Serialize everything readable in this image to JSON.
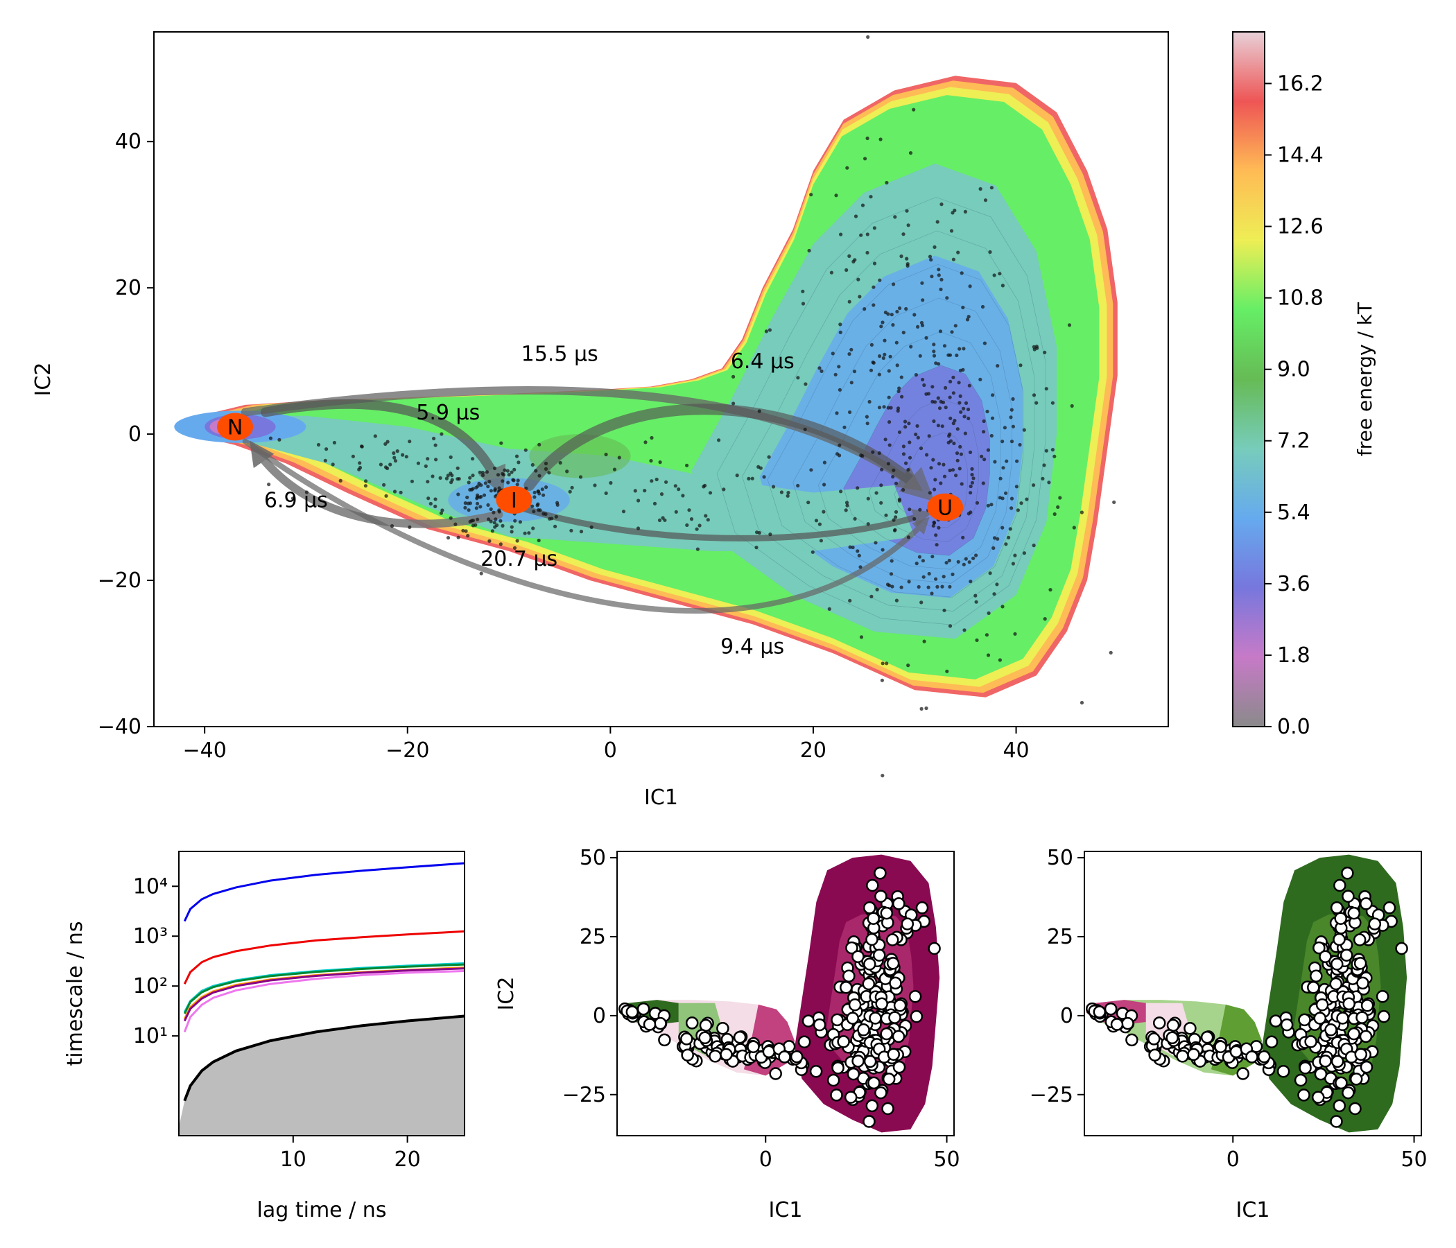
{
  "main": {
    "xlabel": "IC1",
    "ylabel": "IC2",
    "xlim": [
      -45,
      55
    ],
    "ylim": [
      -40,
      55
    ],
    "xticks": [
      -40,
      -20,
      0,
      20,
      40
    ],
    "yticks": [
      -40,
      -20,
      0,
      20,
      40
    ],
    "states": [
      {
        "label": "N",
        "x": -37,
        "y": 1
      },
      {
        "label": "I",
        "x": -9.5,
        "y": -9
      },
      {
        "label": "U",
        "x": 33,
        "y": -10
      }
    ],
    "transitions": [
      {
        "label": "15.5 μs",
        "x": -5,
        "y": 10
      },
      {
        "label": "5.9 μs",
        "x": -16,
        "y": 2
      },
      {
        "label": "6.4 μs",
        "x": 15,
        "y": 9
      },
      {
        "label": "6.9 μs",
        "x": -31,
        "y": -10
      },
      {
        "label": "20.7 μs",
        "x": -9,
        "y": -18
      },
      {
        "label": "9.4 μs",
        "x": 14,
        "y": -30
      }
    ]
  },
  "colorbar": {
    "label": "free energy / kT",
    "min": 0.0,
    "max": 17.5,
    "ticks": [
      "0.0",
      "1.8",
      "3.6",
      "5.4",
      "7.2",
      "9.0",
      "10.8",
      "12.6",
      "14.4",
      "16.2"
    ],
    "colors": [
      "#8a8a8a",
      "#c77ac7",
      "#7777dd",
      "#66aaee",
      "#77ccbb",
      "#66bb55",
      "#66ee66",
      "#eeee55",
      "#ffbb55",
      "#ee5555",
      "#e8d0d8"
    ]
  },
  "chart_data": [
    {
      "type": "line",
      "xlabel": "lag time / ns",
      "ylabel": "timescale / ns",
      "yscale": "log",
      "xlim": [
        0,
        25
      ],
      "ylim": [
        0.1,
        50000
      ],
      "xticks": [
        10,
        20
      ],
      "yticks": [
        "10¹",
        "10²",
        "10³",
        "10⁴"
      ],
      "x": [
        0.5,
        1,
        2,
        3,
        5,
        8,
        12,
        16,
        20,
        25
      ],
      "series": [
        {
          "color": "#0000ee",
          "values": [
            2000,
            3500,
            5500,
            7000,
            9500,
            13000,
            17000,
            20500,
            24000,
            29000
          ]
        },
        {
          "color": "#ee0000",
          "values": [
            110,
            190,
            300,
            380,
            500,
            650,
            820,
            950,
            1080,
            1250
          ]
        },
        {
          "color": "#00cccc",
          "values": [
            30,
            50,
            80,
            100,
            130,
            165,
            200,
            230,
            255,
            285
          ]
        },
        {
          "color": "#008833",
          "values": [
            28,
            48,
            75,
            95,
            125,
            158,
            192,
            220,
            245,
            270
          ]
        },
        {
          "color": "#ff9900",
          "values": [
            22,
            38,
            60,
            78,
            105,
            135,
            165,
            190,
            210,
            235
          ]
        },
        {
          "color": "#880088",
          "values": [
            20,
            35,
            56,
            74,
            100,
            130,
            160,
            185,
            205,
            225
          ]
        },
        {
          "color": "#ee77ee",
          "values": [
            12,
            24,
            42,
            58,
            82,
            110,
            140,
            165,
            185,
            200
          ]
        },
        {
          "color": "#000000",
          "values": [
            0.5,
            1,
            2,
            3,
            5,
            8,
            12,
            16,
            20,
            25
          ],
          "fill": "#bdbdbd"
        }
      ]
    },
    {
      "type": "scatter",
      "xlabel": "IC1",
      "ylabel": "IC2",
      "xlim": [
        -41,
        52
      ],
      "ylim": [
        -38,
        52
      ],
      "xticks": [
        0,
        50
      ],
      "yticks": [
        -25,
        0,
        25,
        50
      ],
      "colors": [
        "#2f6b1f",
        "#8fc47a",
        "#f4dde6",
        "#c2417f",
        "#8a0a52"
      ]
    },
    {
      "type": "scatter",
      "xlabel": "IC1",
      "ylabel": "",
      "xlim": [
        -41,
        52
      ],
      "ylim": [
        -38,
        52
      ],
      "xticks": [
        0,
        50
      ],
      "yticks": [
        -25,
        0,
        25,
        50
      ],
      "colors": [
        "#c2417f",
        "#f4dde6",
        "#a7d48c",
        "#5e9e33",
        "#2f6b1f"
      ]
    }
  ]
}
